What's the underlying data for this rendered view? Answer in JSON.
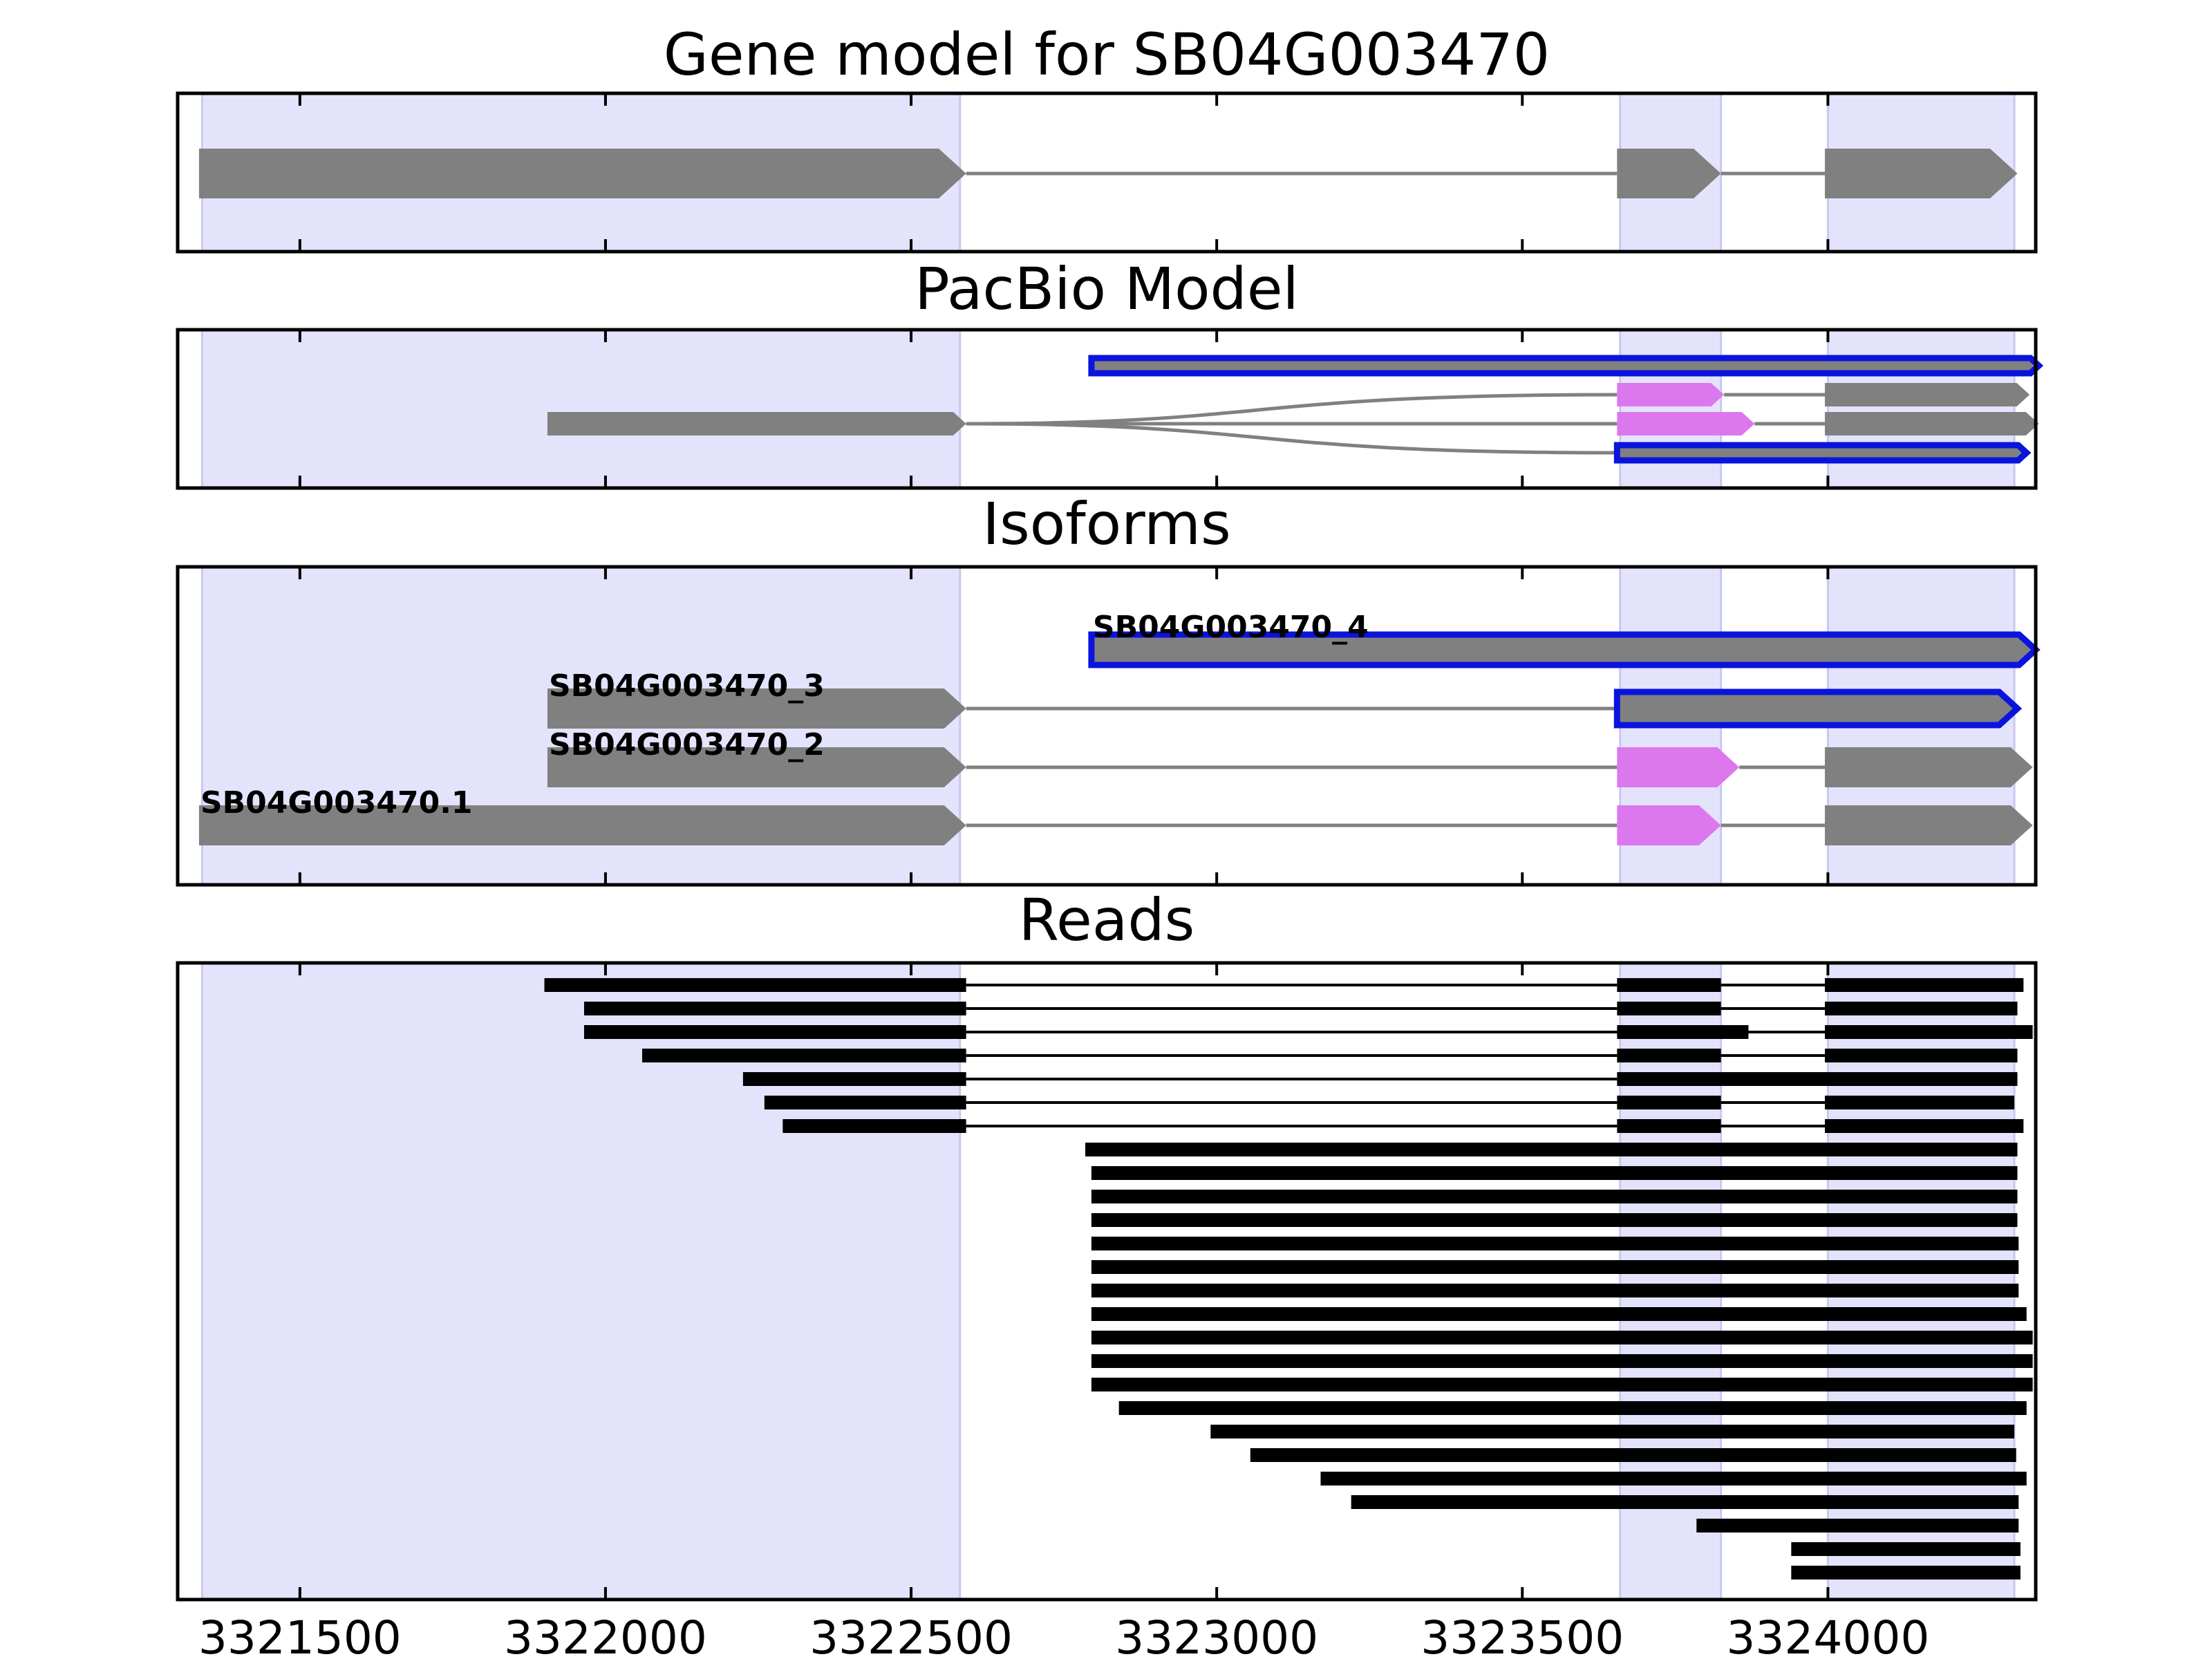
{
  "panels": [
    {
      "id": "gene-model",
      "title": "Gene model for SB04G003470"
    },
    {
      "id": "pacbio",
      "title": "PacBio Model"
    },
    {
      "id": "isoforms",
      "title": "Isoforms"
    },
    {
      "id": "reads",
      "title": "Reads"
    }
  ],
  "axis": {
    "xmin": 3321300,
    "xmax": 3324340,
    "ticks": [
      3321500,
      3322000,
      3322500,
      3323000,
      3323500,
      3324000
    ],
    "tick_labels": [
      "3321500",
      "3322000",
      "3322500",
      "3323000",
      "3323500",
      "3324000"
    ]
  },
  "colors": {
    "exon": "#808080",
    "alt_exon": "#dd77ee",
    "highlight": "#0a14dd",
    "shade": "#e3e3fc",
    "intron": "#808080",
    "read": "#000000"
  },
  "shaded_regions": [
    [
      3321340,
      3322580
    ],
    [
      3323660,
      3323825
    ],
    [
      3324000,
      3324305
    ]
  ],
  "gene_model": {
    "exons": [
      [
        3321335,
        3322590
      ],
      [
        3323655,
        3323825
      ],
      [
        3323995,
        3324310
      ]
    ],
    "direction": "+"
  },
  "pacbio": {
    "rows": [
      {
        "exons": [
          [
            3322795,
            3324345
          ]
        ],
        "outline": true,
        "alt": false
      },
      {
        "exons": [
          [
            3323655,
            3323830
          ],
          [
            3323995,
            3324330
          ]
        ],
        "outline": false,
        "alt": true
      },
      {
        "exons": [
          [
            3323655,
            3323880
          ],
          [
            3323995,
            3324345
          ]
        ],
        "outline": false,
        "alt": true
      },
      {
        "exons": [
          [
            3323655,
            3324325
          ]
        ],
        "outline": true,
        "alt": false
      }
    ],
    "shared_exon": [
      3321905,
      3322590
    ]
  },
  "isoforms": [
    {
      "name": "SB04G003470_4",
      "exons": [
        [
          3322795,
          3324340
        ]
      ],
      "outline": true,
      "alt_index": -1
    },
    {
      "name": "SB04G003470_3",
      "exons": [
        [
          3321905,
          3322590
        ],
        [
          3323655,
          3324310
        ]
      ],
      "outline": true,
      "alt_index": -1
    },
    {
      "name": "SB04G003470_2",
      "exons": [
        [
          3321905,
          3322590
        ],
        [
          3323655,
          3323855
        ],
        [
          3323995,
          3324335
        ]
      ],
      "outline": false,
      "alt_index": 1
    },
    {
      "name": "SB04G003470.1",
      "exons": [
        [
          3321335,
          3322590
        ],
        [
          3323655,
          3323825
        ],
        [
          3323995,
          3324335
        ]
      ],
      "outline": false,
      "alt_index": 1
    }
  ],
  "reads": [
    [
      [
        3321900,
        3322590
      ],
      [
        3323655,
        3323825
      ],
      [
        3323995,
        3324320
      ]
    ],
    [
      [
        3321965,
        3322590
      ],
      [
        3323655,
        3323825
      ],
      [
        3323995,
        3324310
      ]
    ],
    [
      [
        3321965,
        3322590
      ],
      [
        3323655,
        3323870
      ],
      [
        3323995,
        3324335
      ]
    ],
    [
      [
        3322060,
        3322590
      ],
      [
        3323655,
        3323825
      ],
      [
        3323995,
        3324310
      ]
    ],
    [
      [
        3322225,
        3322590
      ],
      [
        3323655,
        3324310
      ]
    ],
    [
      [
        3322260,
        3322590
      ],
      [
        3323655,
        3323825
      ],
      [
        3323995,
        3324305
      ]
    ],
    [
      [
        3322290,
        3322590
      ],
      [
        3323655,
        3323825
      ],
      [
        3323995,
        3324320
      ]
    ],
    [
      [
        3322785,
        3324310
      ]
    ],
    [
      [
        3322795,
        3324310
      ]
    ],
    [
      [
        3322795,
        3324310
      ]
    ],
    [
      [
        3322795,
        3324310
      ]
    ],
    [
      [
        3322795,
        3324312
      ]
    ],
    [
      [
        3322795,
        3324312
      ]
    ],
    [
      [
        3322795,
        3324312
      ]
    ],
    [
      [
        3322795,
        3324325
      ]
    ],
    [
      [
        3322795,
        3324335
      ]
    ],
    [
      [
        3322795,
        3324335
      ]
    ],
    [
      [
        3322795,
        3324335
      ]
    ],
    [
      [
        3322840,
        3324325
      ]
    ],
    [
      [
        3322990,
        3324305
      ]
    ],
    [
      [
        3323055,
        3324308
      ]
    ],
    [
      [
        3323170,
        3324325
      ]
    ],
    [
      [
        3323220,
        3324312
      ]
    ],
    [
      [
        3323785,
        3324312
      ]
    ],
    [
      [
        3323940,
        3324315
      ]
    ],
    [
      [
        3323940,
        3324315
      ]
    ]
  ]
}
